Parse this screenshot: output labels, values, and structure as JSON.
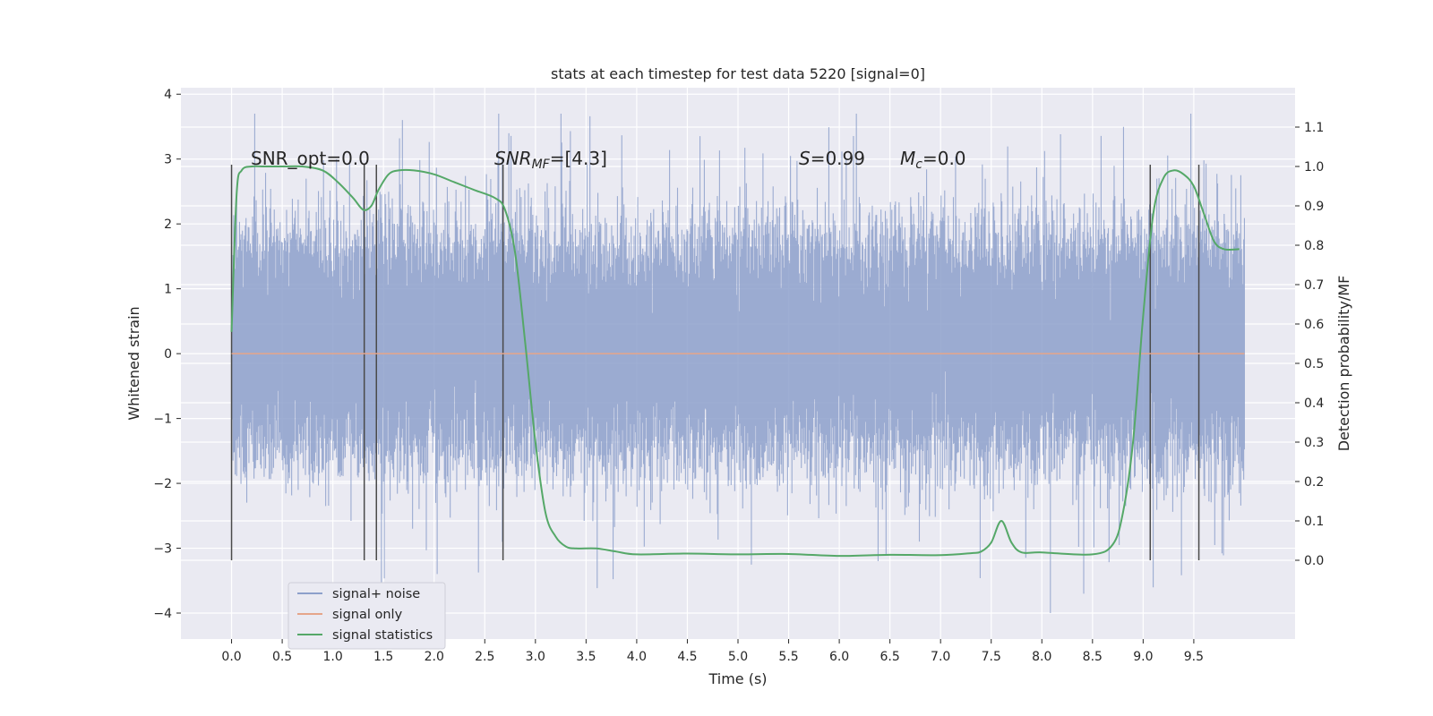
{
  "chart_data": {
    "type": "line",
    "title": "stats at each timestep for test data 5220 [signal=0]",
    "xlabel": "Time (s)",
    "ylabel": "Whitened strain",
    "y2label": "Detection probability/MF",
    "xlim": [
      -0.5,
      10.5
    ],
    "ylim": [
      -4.4,
      4.1
    ],
    "y2lim": [
      -0.2,
      1.2
    ],
    "x_ticks": [
      "0.0",
      "0.5",
      "1.0",
      "1.5",
      "2.0",
      "2.5",
      "3.0",
      "3.5",
      "4.0",
      "4.5",
      "5.0",
      "5.5",
      "6.0",
      "6.5",
      "7.0",
      "7.5",
      "8.0",
      "8.5",
      "9.0",
      "9.5"
    ],
    "y_ticks": [
      "4",
      "3",
      "2",
      "1",
      "0",
      "−1",
      "−2",
      "−3",
      "−4"
    ],
    "y2_ticks": [
      "1.1",
      "1.0",
      "0.9",
      "0.8",
      "0.7",
      "0.6",
      "0.5",
      "0.4",
      "0.3",
      "0.2",
      "0.1",
      "0.0"
    ],
    "grid": true,
    "legend_position": "lower-left",
    "annotations": {
      "snr_opt": "SNR_opt=0.0",
      "snr_mf_sym": "SNR",
      "snr_mf_sub": "MF",
      "snr_mf_val": "=[4.3]",
      "s_sym": "S",
      "s_val": "=0.99",
      "mc_sym": "M",
      "mc_sub": "c",
      "mc_val": "=0.0"
    },
    "series": [
      {
        "name": "signal+ noise",
        "color": "#8da0cb",
        "axis": "left",
        "x_range": [
          0.0,
          10.0
        ],
        "envelope_typical": [
          -1.5,
          1.7
        ],
        "envelope_extreme": [
          -4.0,
          3.7
        ]
      },
      {
        "name": "signal only",
        "color": "#e5a58a",
        "axis": "left",
        "x": [
          0.0,
          10.0
        ],
        "y": [
          0.0,
          0.0
        ]
      },
      {
        "name": "signal statistics",
        "color": "#55a868",
        "axis": "right",
        "x": [
          0.0,
          0.05,
          0.1,
          0.2,
          0.3,
          0.5,
          0.7,
          0.9,
          1.05,
          1.2,
          1.3,
          1.38,
          1.45,
          1.55,
          1.65,
          1.8,
          2.0,
          2.2,
          2.4,
          2.6,
          2.7,
          2.8,
          2.9,
          3.0,
          3.1,
          3.2,
          3.3,
          3.4,
          3.6,
          3.8,
          4.0,
          4.5,
          5.0,
          5.5,
          6.0,
          6.5,
          7.0,
          7.3,
          7.4,
          7.5,
          7.6,
          7.7,
          7.8,
          8.0,
          8.5,
          8.7,
          8.8,
          8.9,
          9.0,
          9.1,
          9.2,
          9.3,
          9.4,
          9.5,
          9.6,
          9.7,
          9.8,
          9.95
        ],
        "y": [
          0.58,
          0.93,
          0.99,
          1.0,
          1.0,
          1.0,
          1.0,
          0.99,
          0.96,
          0.92,
          0.89,
          0.9,
          0.94,
          0.98,
          0.99,
          0.99,
          0.98,
          0.96,
          0.94,
          0.92,
          0.89,
          0.78,
          0.55,
          0.3,
          0.12,
          0.06,
          0.035,
          0.03,
          0.03,
          0.022,
          0.015,
          0.017,
          0.015,
          0.016,
          0.011,
          0.014,
          0.013,
          0.018,
          0.022,
          0.045,
          0.1,
          0.045,
          0.02,
          0.02,
          0.015,
          0.04,
          0.12,
          0.3,
          0.62,
          0.88,
          0.97,
          0.99,
          0.98,
          0.95,
          0.88,
          0.81,
          0.79,
          0.79
        ]
      }
    ],
    "event_markers_x": [
      0.0,
      1.31,
      1.43,
      2.68,
      9.07,
      9.55
    ]
  }
}
